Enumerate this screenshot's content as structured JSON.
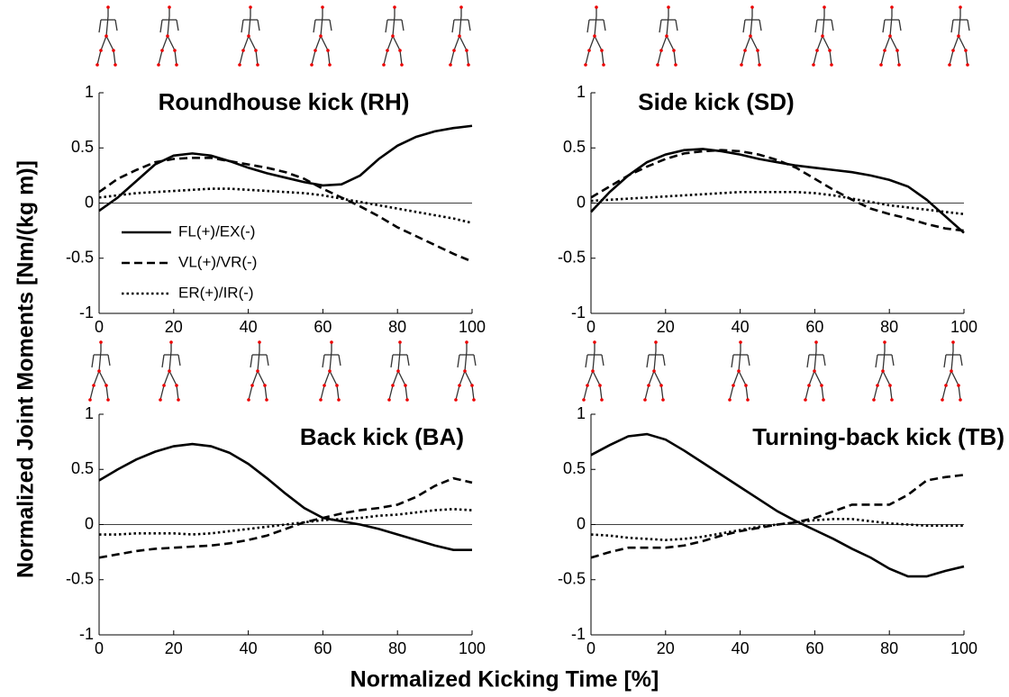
{
  "figure": {
    "xlabel": "Normalized Kicking Time [%]",
    "ylabel": "Normalized Joint Moments [Nm/(kg m)]"
  },
  "chart_data": [
    {
      "type": "line",
      "title": "Roundhouse kick (RH)",
      "legend": "center left",
      "zero_line": true,
      "x": [
        0,
        5,
        10,
        15,
        20,
        25,
        30,
        35,
        40,
        45,
        50,
        55,
        60,
        65,
        70,
        75,
        80,
        85,
        90,
        95,
        100
      ],
      "xlim": [
        0,
        100
      ],
      "xticks": [
        0,
        20,
        40,
        60,
        80,
        100
      ],
      "ylim": [
        -1,
        1
      ],
      "yticks": [
        -1,
        -0.5,
        0,
        0.5,
        1
      ],
      "series": [
        {
          "name": "FL(+)/EX(-)",
          "color": "#000000",
          "dash": "solid",
          "values": [
            -0.07,
            0.05,
            0.2,
            0.35,
            0.43,
            0.45,
            0.43,
            0.38,
            0.32,
            0.27,
            0.23,
            0.19,
            0.16,
            0.17,
            0.25,
            0.4,
            0.52,
            0.6,
            0.65,
            0.68,
            0.7
          ]
        },
        {
          "name": "VL(+)/VR(-)",
          "color": "#000000",
          "dash": "dashed",
          "values": [
            0.1,
            0.22,
            0.3,
            0.37,
            0.4,
            0.41,
            0.41,
            0.38,
            0.35,
            0.32,
            0.28,
            0.22,
            0.13,
            0.05,
            -0.03,
            -0.12,
            -0.22,
            -0.3,
            -0.38,
            -0.46,
            -0.53
          ]
        },
        {
          "name": "ER(+)/IR(-)",
          "color": "#000000",
          "dash": "dotted",
          "values": [
            0.05,
            0.07,
            0.09,
            0.1,
            0.11,
            0.12,
            0.13,
            0.13,
            0.12,
            0.11,
            0.1,
            0.09,
            0.07,
            0.04,
            0.01,
            -0.02,
            -0.05,
            -0.08,
            -0.11,
            -0.14,
            -0.18
          ]
        }
      ]
    },
    {
      "type": "line",
      "title": "Side kick (SD)",
      "zero_line": true,
      "x": [
        0,
        5,
        10,
        15,
        20,
        25,
        30,
        35,
        40,
        45,
        50,
        55,
        60,
        65,
        70,
        75,
        80,
        85,
        90,
        95,
        100
      ],
      "xlim": [
        0,
        100
      ],
      "xticks": [
        0,
        20,
        40,
        60,
        80,
        100
      ],
      "ylim": [
        -1,
        1
      ],
      "yticks": [
        -1,
        -0.5,
        0,
        0.5,
        1
      ],
      "series": [
        {
          "color": "#000000",
          "dash": "solid",
          "values": [
            -0.08,
            0.1,
            0.25,
            0.37,
            0.44,
            0.48,
            0.49,
            0.47,
            0.44,
            0.4,
            0.37,
            0.34,
            0.32,
            0.3,
            0.28,
            0.25,
            0.21,
            0.15,
            0.03,
            -0.12,
            -0.27
          ]
        },
        {
          "color": "#000000",
          "dash": "dashed",
          "values": [
            0.05,
            0.15,
            0.25,
            0.33,
            0.4,
            0.45,
            0.47,
            0.48,
            0.47,
            0.44,
            0.39,
            0.32,
            0.22,
            0.12,
            0.03,
            -0.05,
            -0.1,
            -0.14,
            -0.19,
            -0.23,
            -0.25
          ]
        },
        {
          "color": "#000000",
          "dash": "dotted",
          "values": [
            0.02,
            0.03,
            0.04,
            0.05,
            0.06,
            0.07,
            0.08,
            0.09,
            0.1,
            0.1,
            0.1,
            0.1,
            0.09,
            0.07,
            0.04,
            0.01,
            -0.02,
            -0.04,
            -0.06,
            -0.08,
            -0.1
          ]
        }
      ]
    },
    {
      "type": "line",
      "title": "Back kick (BA)",
      "zero_line": true,
      "x": [
        0,
        5,
        10,
        15,
        20,
        25,
        30,
        35,
        40,
        45,
        50,
        55,
        60,
        65,
        70,
        75,
        80,
        85,
        90,
        95,
        100
      ],
      "xlim": [
        0,
        100
      ],
      "xticks": [
        0,
        20,
        40,
        60,
        80,
        100
      ],
      "ylim": [
        -1,
        1
      ],
      "yticks": [
        -1,
        -0.5,
        0,
        0.5,
        1
      ],
      "series": [
        {
          "color": "#000000",
          "dash": "solid",
          "values": [
            0.4,
            0.5,
            0.59,
            0.66,
            0.71,
            0.73,
            0.71,
            0.65,
            0.55,
            0.42,
            0.28,
            0.15,
            0.06,
            0.03,
            0,
            -0.04,
            -0.09,
            -0.14,
            -0.19,
            -0.23,
            -0.23
          ]
        },
        {
          "color": "#000000",
          "dash": "dashed",
          "values": [
            -0.3,
            -0.27,
            -0.24,
            -0.22,
            -0.21,
            -0.2,
            -0.19,
            -0.17,
            -0.14,
            -0.1,
            -0.04,
            0.02,
            0.06,
            0.1,
            0.13,
            0.15,
            0.18,
            0.25,
            0.35,
            0.42,
            0.38
          ]
        },
        {
          "color": "#000000",
          "dash": "dotted",
          "values": [
            -0.09,
            -0.09,
            -0.08,
            -0.08,
            -0.08,
            -0.09,
            -0.08,
            -0.06,
            -0.04,
            -0.02,
            0,
            0.02,
            0.04,
            0.05,
            0.06,
            0.08,
            0.09,
            0.11,
            0.13,
            0.14,
            0.13
          ]
        }
      ]
    },
    {
      "type": "line",
      "title": "Turning-back kick (TB)",
      "zero_line": true,
      "x": [
        0,
        5,
        10,
        15,
        20,
        25,
        30,
        35,
        40,
        45,
        50,
        55,
        60,
        65,
        70,
        75,
        80,
        85,
        90,
        95,
        100
      ],
      "xlim": [
        0,
        100
      ],
      "xticks": [
        0,
        20,
        40,
        60,
        80,
        100
      ],
      "ylim": [
        -1,
        1
      ],
      "yticks": [
        -1,
        -0.5,
        0,
        0.5,
        1
      ],
      "series": [
        {
          "color": "#000000",
          "dash": "solid",
          "values": [
            0.63,
            0.72,
            0.8,
            0.82,
            0.77,
            0.67,
            0.56,
            0.45,
            0.34,
            0.23,
            0.12,
            0.03,
            -0.05,
            -0.13,
            -0.22,
            -0.3,
            -0.4,
            -0.47,
            -0.47,
            -0.42,
            -0.38
          ]
        },
        {
          "color": "#000000",
          "dash": "dashed",
          "values": [
            -0.3,
            -0.25,
            -0.21,
            -0.21,
            -0.21,
            -0.19,
            -0.15,
            -0.1,
            -0.06,
            -0.03,
            0,
            0.02,
            0.06,
            0.12,
            0.18,
            0.18,
            0.18,
            0.27,
            0.4,
            0.43,
            0.45
          ]
        },
        {
          "color": "#000000",
          "dash": "dotted",
          "values": [
            -0.09,
            -0.1,
            -0.12,
            -0.13,
            -0.14,
            -0.13,
            -0.11,
            -0.08,
            -0.05,
            -0.02,
            0,
            0.02,
            0.04,
            0.05,
            0.05,
            0.03,
            0.01,
            0,
            -0.01,
            -0.01,
            -0.01
          ]
        }
      ]
    }
  ]
}
